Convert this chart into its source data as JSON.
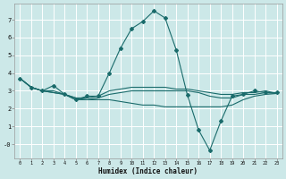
{
  "xlabel": "Humidex (Indice chaleur)",
  "background_color": "#cce8e8",
  "grid_color": "#ffffff",
  "line_color": "#1a6b6b",
  "xlim": [
    -0.5,
    23.5
  ],
  "ylim": [
    -0.8,
    7.9
  ],
  "xticks": [
    0,
    1,
    2,
    3,
    4,
    5,
    6,
    7,
    8,
    9,
    10,
    11,
    12,
    13,
    14,
    15,
    16,
    17,
    18,
    19,
    20,
    21,
    22,
    23
  ],
  "yticks": [
    0,
    1,
    2,
    3,
    4,
    5,
    6,
    7
  ],
  "ytick_labels": [
    "-0",
    "1",
    "2",
    "3",
    "4",
    "5",
    "6",
    "7"
  ],
  "line_main": {
    "x": [
      0,
      1,
      2,
      3,
      4,
      5,
      6,
      7,
      8,
      9,
      10,
      11,
      12,
      13,
      14,
      15,
      16,
      17,
      18,
      19,
      20,
      21,
      22,
      23
    ],
    "y": [
      3.7,
      3.2,
      3.0,
      3.3,
      2.8,
      2.5,
      2.7,
      2.7,
      4.0,
      5.4,
      6.5,
      6.9,
      7.5,
      7.1,
      5.3,
      2.75,
      0.8,
      -0.35,
      1.3,
      2.7,
      2.8,
      3.0,
      2.9,
      2.9
    ]
  },
  "line_flat1": {
    "x": [
      0,
      1,
      2,
      3,
      4,
      5,
      6,
      7,
      8,
      9,
      10,
      11,
      12,
      13,
      14,
      15,
      16,
      17,
      18,
      19,
      20,
      21,
      22,
      23
    ],
    "y": [
      3.7,
      3.2,
      3.0,
      3.0,
      2.8,
      2.6,
      2.6,
      2.7,
      3.0,
      3.1,
      3.2,
      3.2,
      3.2,
      3.2,
      3.1,
      3.1,
      3.0,
      2.9,
      2.8,
      2.8,
      2.9,
      2.9,
      3.0,
      2.85
    ]
  },
  "line_flat2": {
    "x": [
      0,
      1,
      2,
      3,
      4,
      5,
      6,
      7,
      8,
      9,
      10,
      11,
      12,
      13,
      14,
      15,
      16,
      17,
      18,
      19,
      20,
      21,
      22,
      23
    ],
    "y": [
      3.7,
      3.2,
      3.0,
      2.9,
      2.8,
      2.5,
      2.5,
      2.6,
      2.8,
      2.9,
      3.0,
      3.0,
      3.0,
      3.0,
      3.0,
      3.0,
      2.9,
      2.7,
      2.6,
      2.6,
      2.8,
      2.8,
      2.9,
      2.85
    ]
  },
  "line_sloped": {
    "x": [
      0,
      1,
      2,
      3,
      4,
      5,
      6,
      7,
      8,
      9,
      10,
      11,
      12,
      13,
      14,
      15,
      16,
      17,
      18,
      19,
      20,
      21,
      22,
      23
    ],
    "y": [
      3.7,
      3.2,
      3.0,
      2.9,
      2.8,
      2.6,
      2.5,
      2.5,
      2.5,
      2.4,
      2.3,
      2.2,
      2.2,
      2.1,
      2.1,
      2.1,
      2.1,
      2.1,
      2.1,
      2.2,
      2.5,
      2.7,
      2.8,
      2.85
    ]
  }
}
